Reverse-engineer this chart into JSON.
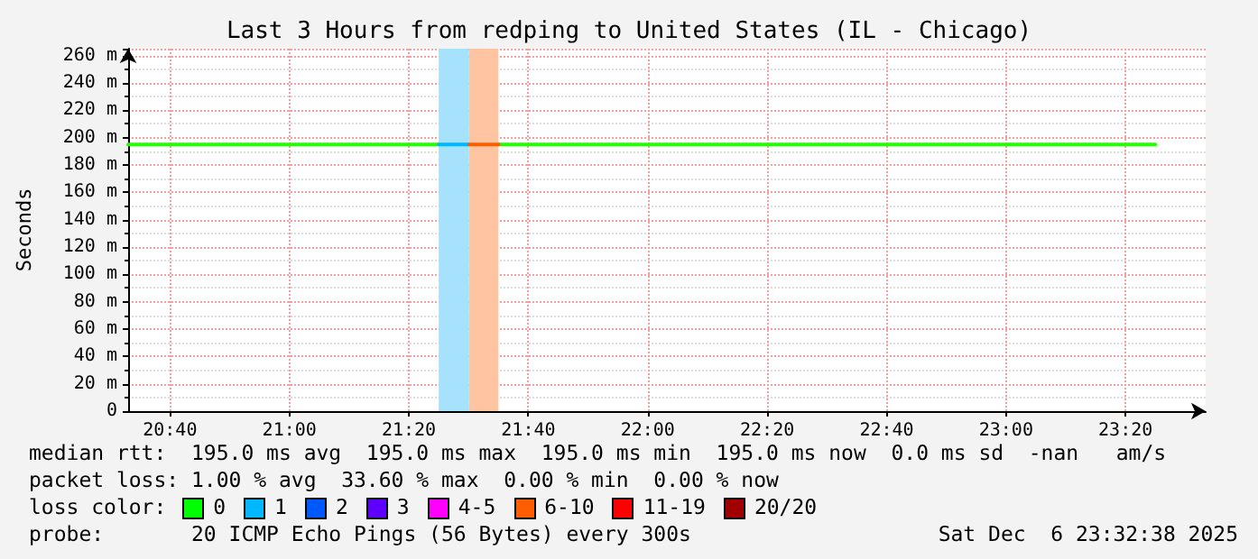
{
  "chart_data": {
    "type": "line",
    "title": "Last 3 Hours from redping to United States (IL - Chicago)",
    "ylabel": "Seconds",
    "series": [
      {
        "color": "#22ff00",
        "x": [
          20.55,
          21.4167,
          21.5,
          21.5833,
          23.4167
        ],
        "values": [
          195,
          195,
          null,
          195,
          195
        ]
      },
      {
        "color": "#00b8ff",
        "x": [
          21.4167,
          21.5
        ],
        "values": [
          195,
          195
        ]
      },
      {
        "color": "#ff5e00",
        "x": [
          21.5,
          21.5833
        ],
        "values": [
          195,
          195
        ]
      }
    ],
    "bands": [
      {
        "axis": "x",
        "from": 21.4167,
        "to": 21.5,
        "color": "#a6e2fb"
      },
      {
        "axis": "x",
        "from": 21.5,
        "to": 21.5833,
        "color": "#ffc4a2"
      }
    ],
    "xlim": [
      20.55,
      23.557
    ],
    "xticks": [
      {
        "value": 20.6667,
        "label": "20:40"
      },
      {
        "value": 21,
        "label": "21:00"
      },
      {
        "value": 21.3333,
        "label": "21:20"
      },
      {
        "value": 21.6667,
        "label": "21:40"
      },
      {
        "value": 22,
        "label": "22:00"
      },
      {
        "value": 22.3333,
        "label": "22:20"
      },
      {
        "value": 22.6667,
        "label": "22:40"
      },
      {
        "value": 23,
        "label": "23:00"
      },
      {
        "value": 23.3333,
        "label": "23:20"
      }
    ],
    "ylim": [
      0,
      265
    ],
    "yticks": [
      0,
      {
        "value": 20,
        "label": "20 m"
      },
      {
        "value": 40,
        "label": "40 m"
      },
      {
        "value": 60,
        "label": "60 m"
      },
      {
        "value": 80,
        "label": "80 m"
      },
      {
        "value": 100,
        "label": "100 m"
      },
      {
        "value": 120,
        "label": "120 m"
      },
      {
        "value": 140,
        "label": "140 m"
      },
      {
        "value": 160,
        "label": "160 m"
      },
      {
        "value": 180,
        "label": "180 m"
      },
      {
        "value": 200,
        "label": "200 m"
      },
      {
        "value": 220,
        "label": "220 m"
      },
      {
        "value": 240,
        "label": "240 m"
      },
      {
        "value": 260,
        "label": "260 m"
      }
    ],
    "grid": true,
    "marker": "none",
    "line_style": "solid",
    "annotations": [
      "median rtt:  195.0 ms avg  195.0 ms max  195.0 ms min  195.0 ms now  0.0 ms sd  -nan   am/s",
      "packet loss: 1.00 % avg  33.60 % max  0.00 % min  0.00 % now",
      "loss color:",
      "0",
      "1",
      "2",
      "3",
      "4-5",
      "6-10",
      "11-19",
      "20/20",
      "probe:       20 ICMP Echo Pings (56 Bytes) every 300s",
      "Sat Dec  6 23:32:38 2025"
    ]
  }
}
